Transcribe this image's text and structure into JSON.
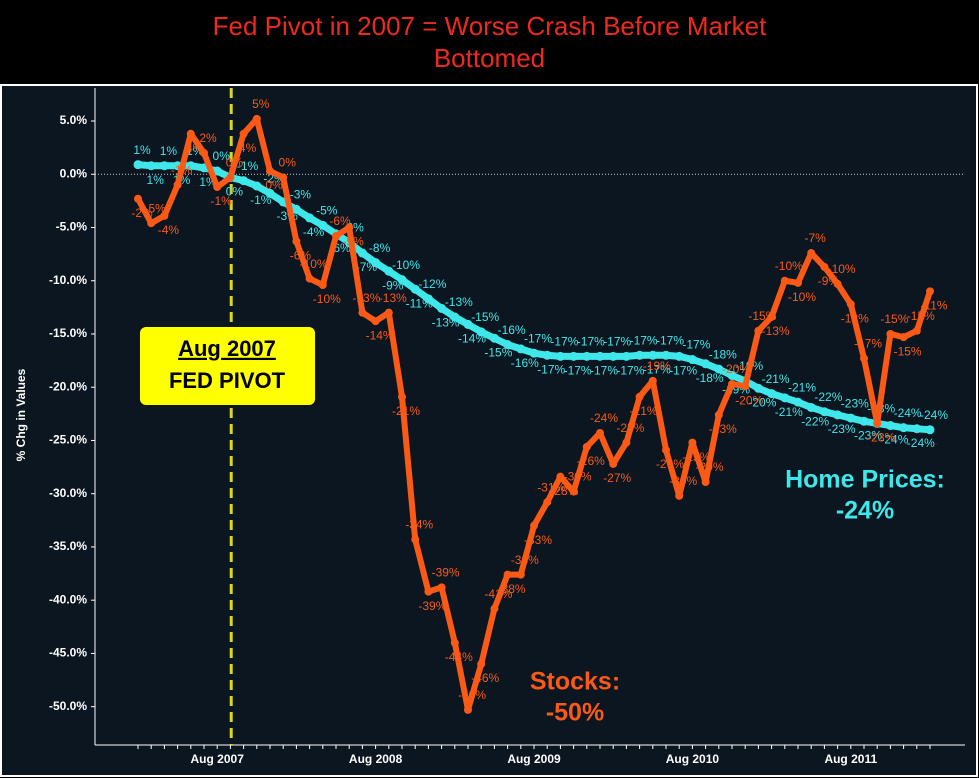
{
  "chart_data": {
    "type": "line",
    "title": "Fed Pivot in 2007 = Worse Crash Before Market Bottomed",
    "y_label": "% Chg in Values",
    "categories": [
      null,
      null,
      null,
      null,
      null,
      null,
      "Aug 2007",
      null,
      null,
      null,
      null,
      null,
      null,
      null,
      null,
      null,
      null,
      null,
      "Aug 2008",
      null,
      null,
      null,
      null,
      null,
      null,
      null,
      null,
      null,
      null,
      null,
      "Aug 2009",
      null,
      null,
      null,
      null,
      null,
      null,
      null,
      null,
      null,
      null,
      null,
      "Aug 2010",
      null,
      null,
      null,
      null,
      null,
      null,
      null,
      null,
      null,
      null,
      null,
      "Aug 2011",
      null,
      null,
      null,
      null,
      null,
      null
    ],
    "ylim": [
      -53.6,
      8.1
    ],
    "yticks": [
      {
        "value": -50,
        "label": "-50.0%"
      },
      {
        "value": -45,
        "label": "-45.0%"
      },
      {
        "value": -40,
        "label": "-40.0%"
      },
      {
        "value": -35,
        "label": "-35.0%"
      },
      {
        "value": -30,
        "label": "-30.0%"
      },
      {
        "value": -25,
        "label": "-25.0%"
      },
      {
        "value": -20,
        "label": "-20.0%"
      },
      {
        "value": -15,
        "label": "-15.0%"
      },
      {
        "value": -10,
        "label": "-10.0%"
      },
      {
        "value": -5,
        "label": "-5.0%"
      },
      {
        "value": 0,
        "label": "0.0%"
      },
      {
        "value": 5,
        "label": "5.0%"
      }
    ],
    "series": [
      {
        "name": "Home Prices",
        "color": "#3ee8ea",
        "values": [
          0.9,
          0.8,
          0.8,
          0.8,
          0.8,
          0.6,
          0.3,
          -0.3,
          -0.6,
          -1.1,
          -1.8,
          -2.6,
          -3.3,
          -4.1,
          -4.8,
          -5.6,
          -6.4,
          -7.4,
          -8.3,
          -9.1,
          -9.9,
          -10.8,
          -11.7,
          -12.6,
          -13.4,
          -14.1,
          -14.8,
          -15.4,
          -16,
          -16.4,
          -16.8,
          -17,
          -17.1,
          -17.1,
          -17.1,
          -17.1,
          -17.1,
          -17.1,
          -17,
          -17,
          -17,
          -17.1,
          -17.4,
          -17.8,
          -18.3,
          -18.9,
          -19.4,
          -20.1,
          -20.6,
          -21,
          -21.4,
          -21.9,
          -22.3,
          -22.6,
          -22.9,
          -23.2,
          -23.4,
          -23.6,
          -23.8,
          -23.9,
          -24
        ],
        "value_labels": [
          "1%",
          "1%",
          "1%",
          "1%",
          "1%",
          "1%",
          "0%",
          "0%",
          "-1%",
          "-1%",
          "-2%",
          "-3%",
          "-3%",
          "-4%",
          "-5%",
          "-6%",
          "-6%",
          "-7%",
          "-8%",
          "-9%",
          "-10%",
          "-11%",
          "-12%",
          "-13%",
          "-13%",
          "-14%",
          "-15%",
          "-15%",
          "-16%",
          "-16%",
          "-17%",
          "-17%",
          "-17%",
          "-17%",
          "-17%",
          "-17%",
          "-17%",
          "-17%",
          "-17%",
          "-17%",
          "-17%",
          "-17%",
          "-17%",
          "-18%",
          "-18%",
          "-19%",
          "-19%",
          "-20%",
          "-21%",
          "-21%",
          "-21%",
          "-22%",
          "-22%",
          "-23%",
          "-23%",
          "-23%",
          "-23%",
          "-24%",
          "-24%",
          "-24%",
          "-24%"
        ]
      },
      {
        "name": "Stocks",
        "color": "#fb5a16",
        "values": [
          -2.3,
          -4.6,
          -3.9,
          -1,
          3.8,
          2,
          -1.2,
          -0.3,
          3.8,
          5.2,
          0.3,
          -0.3,
          -6.3,
          -9.8,
          -10.4,
          -5.8,
          -5,
          -13,
          -13.8,
          -13,
          -20.9,
          -34.3,
          -39.2,
          -38.8,
          -44,
          -50.3,
          -46,
          -40.8,
          -37.6,
          -37.6,
          -33,
          -30.8,
          -28.4,
          -29.8,
          -25.6,
          -24.3,
          -27.2,
          -25.2,
          -20.9,
          -19.4,
          -25.9,
          -30.2,
          -25.2,
          -28.9,
          -22.6,
          -19.7,
          -19.9,
          -14.7,
          -13.4,
          -10,
          -10.2,
          -7.4,
          -8.7,
          -10.3,
          -12.2,
          -17.3,
          -23.4,
          -15,
          -15.3,
          -14.7,
          -11
        ],
        "value_labels": [
          "-2%",
          "-5%",
          "-4%",
          "-1%",
          "4%",
          "2%",
          "-1%",
          "0%",
          "4%",
          "5%",
          "0%",
          "0%",
          "-6%",
          "-10%",
          "-10%",
          "-6%",
          "-5%",
          "-13%",
          "-14%",
          "-13%",
          "-21%",
          "-34%",
          "-39%",
          "-39%",
          "-44%",
          "-50%",
          "-46%",
          "-41%",
          "-38%",
          "-38%",
          "-33%",
          "-31%",
          "-28%",
          "-30%",
          "-26%",
          "-24%",
          "-27%",
          "-25%",
          "-21%",
          "-19%",
          "-26%",
          "-30%",
          "-25%",
          "-29%",
          "-23%",
          "-20%",
          "-20%",
          "-15%",
          "-13%",
          "-10%",
          "-10%",
          "-7%",
          "-9%",
          "-10%",
          "-12%",
          "-17%",
          "-23%",
          "-15%",
          "-15%",
          "-15%",
          "-11%"
        ]
      }
    ],
    "annotations": [
      {
        "lines": [
          "Stocks:",
          "-50%"
        ],
        "color": "#fb5a16"
      },
      {
        "lines": [
          "Home Prices:",
          "-24%"
        ],
        "color": "#3ee8ea"
      }
    ],
    "pivot": {
      "lines": [
        "Aug 2007",
        "FED PIVOT"
      ],
      "color": "#ffff00"
    }
  }
}
